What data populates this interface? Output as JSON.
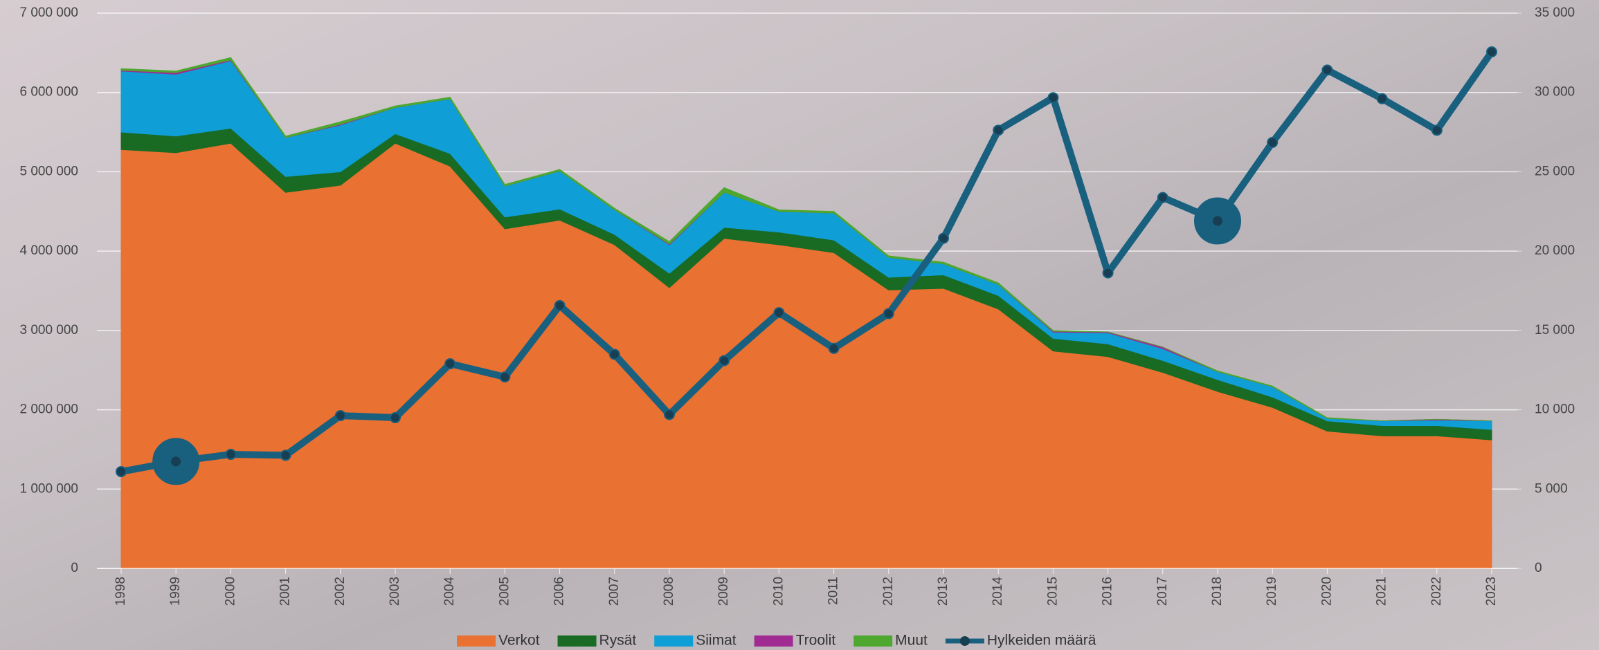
{
  "chart_data": {
    "type": "area",
    "categories": [
      "1998",
      "1999",
      "2000",
      "2001",
      "2002",
      "2003",
      "2004",
      "2005",
      "2006",
      "2007",
      "2008",
      "2009",
      "2010",
      "2011",
      "2012",
      "2013",
      "2014",
      "2015",
      "2016",
      "2017",
      "2018",
      "2019",
      "2020",
      "2021",
      "2022",
      "2023"
    ],
    "series": [
      {
        "name": "Verkot",
        "color": "#e97132",
        "values": [
          5280000,
          5240000,
          5360000,
          4740000,
          4830000,
          5360000,
          5070000,
          4280000,
          4390000,
          4080000,
          3540000,
          4160000,
          4080000,
          3980000,
          3510000,
          3530000,
          3270000,
          2740000,
          2670000,
          2470000,
          2230000,
          2030000,
          1730000,
          1670000,
          1670000,
          1620000
        ]
      },
      {
        "name": "Rysät",
        "color": "#196b24",
        "values": [
          220000,
          210000,
          190000,
          200000,
          170000,
          120000,
          160000,
          150000,
          140000,
          130000,
          180000,
          140000,
          160000,
          160000,
          160000,
          170000,
          170000,
          160000,
          160000,
          150000,
          150000,
          130000,
          130000,
          130000,
          130000,
          130000
        ]
      },
      {
        "name": "Siimat",
        "color": "#0f9ed5",
        "values": [
          770000,
          780000,
          850000,
          490000,
          590000,
          330000,
          690000,
          390000,
          480000,
          310000,
          360000,
          440000,
          260000,
          340000,
          250000,
          140000,
          140000,
          80000,
          140000,
          150000,
          100000,
          130000,
          30000,
          60000,
          70000,
          110000
        ]
      },
      {
        "name": "Troolit",
        "color": "#a02b93",
        "values": [
          10000,
          20000,
          10000,
          0,
          10000,
          0,
          0,
          0,
          0,
          0,
          10000,
          0,
          0,
          0,
          0,
          0,
          0,
          10000,
          10000,
          20000,
          0,
          0,
          0,
          0,
          10000,
          0
        ]
      },
      {
        "name": "Muut",
        "color": "#4ea72e",
        "values": [
          20000,
          20000,
          30000,
          20000,
          30000,
          20000,
          20000,
          20000,
          20000,
          20000,
          30000,
          60000,
          20000,
          20000,
          20000,
          20000,
          20000,
          10000,
          0,
          0,
          10000,
          10000,
          10000,
          0,
          0,
          0
        ]
      },
      {
        "name": "Hylkeiden määrä",
        "color": "#19607f",
        "type": "line",
        "axis": "y2",
        "highlight": [
          1,
          20
        ],
        "values": [
          6100,
          6740,
          7190,
          7130,
          9630,
          9500,
          12900,
          12070,
          16570,
          13490,
          9700,
          13100,
          16120,
          13870,
          16060,
          20810,
          27620,
          29670,
          18630,
          23380,
          21900,
          26850,
          31410,
          29610,
          27620,
          32560
        ]
      }
    ],
    "ylim": [
      0,
      7000000
    ],
    "yticks": [
      0,
      {
        "value": 1000000,
        "label": "1 000 000"
      },
      {
        "value": 2000000,
        "label": "2 000 000"
      },
      {
        "value": 3000000,
        "label": "3 000 000"
      },
      {
        "value": 4000000,
        "label": "4 000 000"
      },
      {
        "value": 5000000,
        "label": "5 000 000"
      },
      {
        "value": 6000000,
        "label": "6 000 000"
      },
      {
        "value": 7000000,
        "label": "7 000 000"
      }
    ],
    "y2lim": [
      0,
      35000
    ],
    "y2ticks": [
      0,
      {
        "value": 5000,
        "label": "5 000"
      },
      {
        "value": 10000,
        "label": "10 000"
      },
      {
        "value": 15000,
        "label": "15 000"
      },
      {
        "value": 20000,
        "label": "20 000"
      },
      {
        "value": 25000,
        "label": "25 000"
      },
      {
        "value": 30000,
        "label": "30 000"
      },
      {
        "value": 35000,
        "label": "35 000"
      }
    ],
    "grid": true,
    "legend": "bottom"
  }
}
